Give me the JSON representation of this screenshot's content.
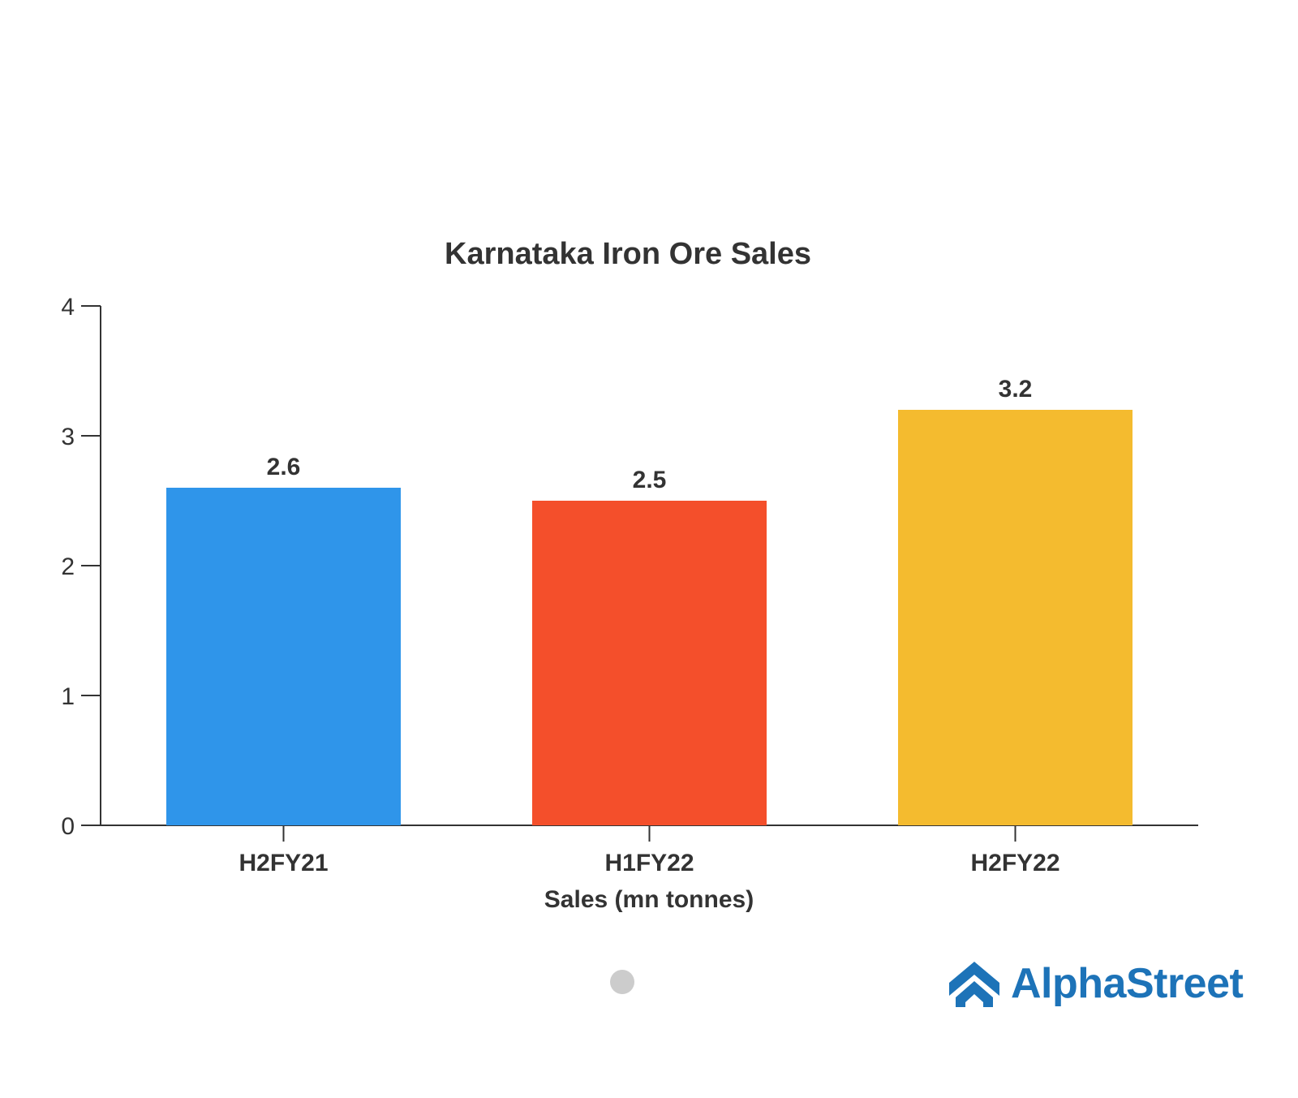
{
  "chart_data": {
    "type": "bar",
    "title": "Karnataka Iron Ore Sales",
    "xlabel": "Sales (mn tonnes)",
    "ylabel": "",
    "categories": [
      "H2FY21",
      "H1FY22",
      "H2FY22"
    ],
    "values": [
      2.6,
      2.5,
      3.2
    ],
    "data_labels": [
      "2.6",
      "2.5",
      "3.2"
    ],
    "colors": [
      "#2F95EA",
      "#F44F2B",
      "#F4BB2F"
    ],
    "ylim": [
      0,
      4
    ],
    "yticks": [
      0,
      1,
      2,
      3,
      4
    ],
    "grid": false,
    "legend": "none"
  },
  "pager": {
    "dot_color": "#CCCCCC"
  },
  "brand": {
    "name": "AlphaStreet",
    "icon": "alphastreet-logo-icon",
    "color": "#1D73B8"
  }
}
